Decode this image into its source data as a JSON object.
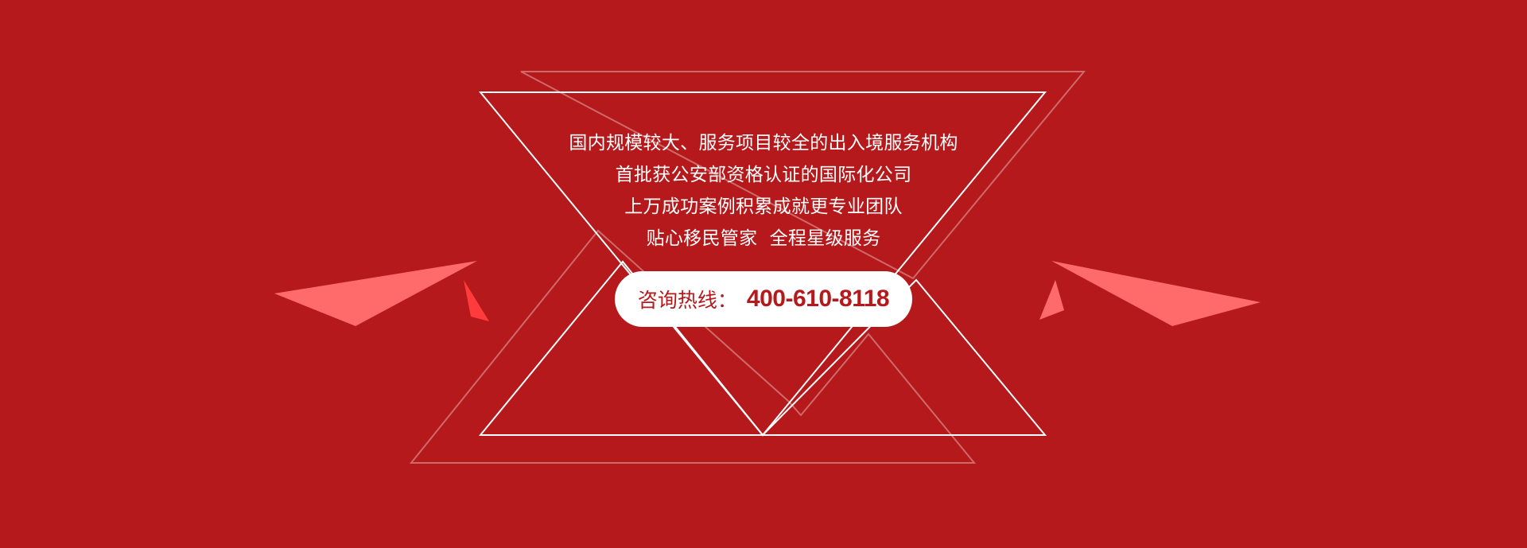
{
  "colors": {
    "background": "#b5191b",
    "text_light": "#ffffff",
    "accent_pink": "#ff6b6b",
    "accent_red": "#ff3b3b",
    "hotline_bg": "#ffffff",
    "hotline_text": "#b5191b"
  },
  "slogans": [
    "国内规模较大、服务项目较全的出入境服务机构",
    "首批获公安部资格认证的国际化公司",
    "上万成功案例积累成就更专业团队",
    "贴心移民管家  全程星级服务"
  ],
  "hotline": {
    "label": "咨询热线：",
    "number": "400-610-8118"
  }
}
